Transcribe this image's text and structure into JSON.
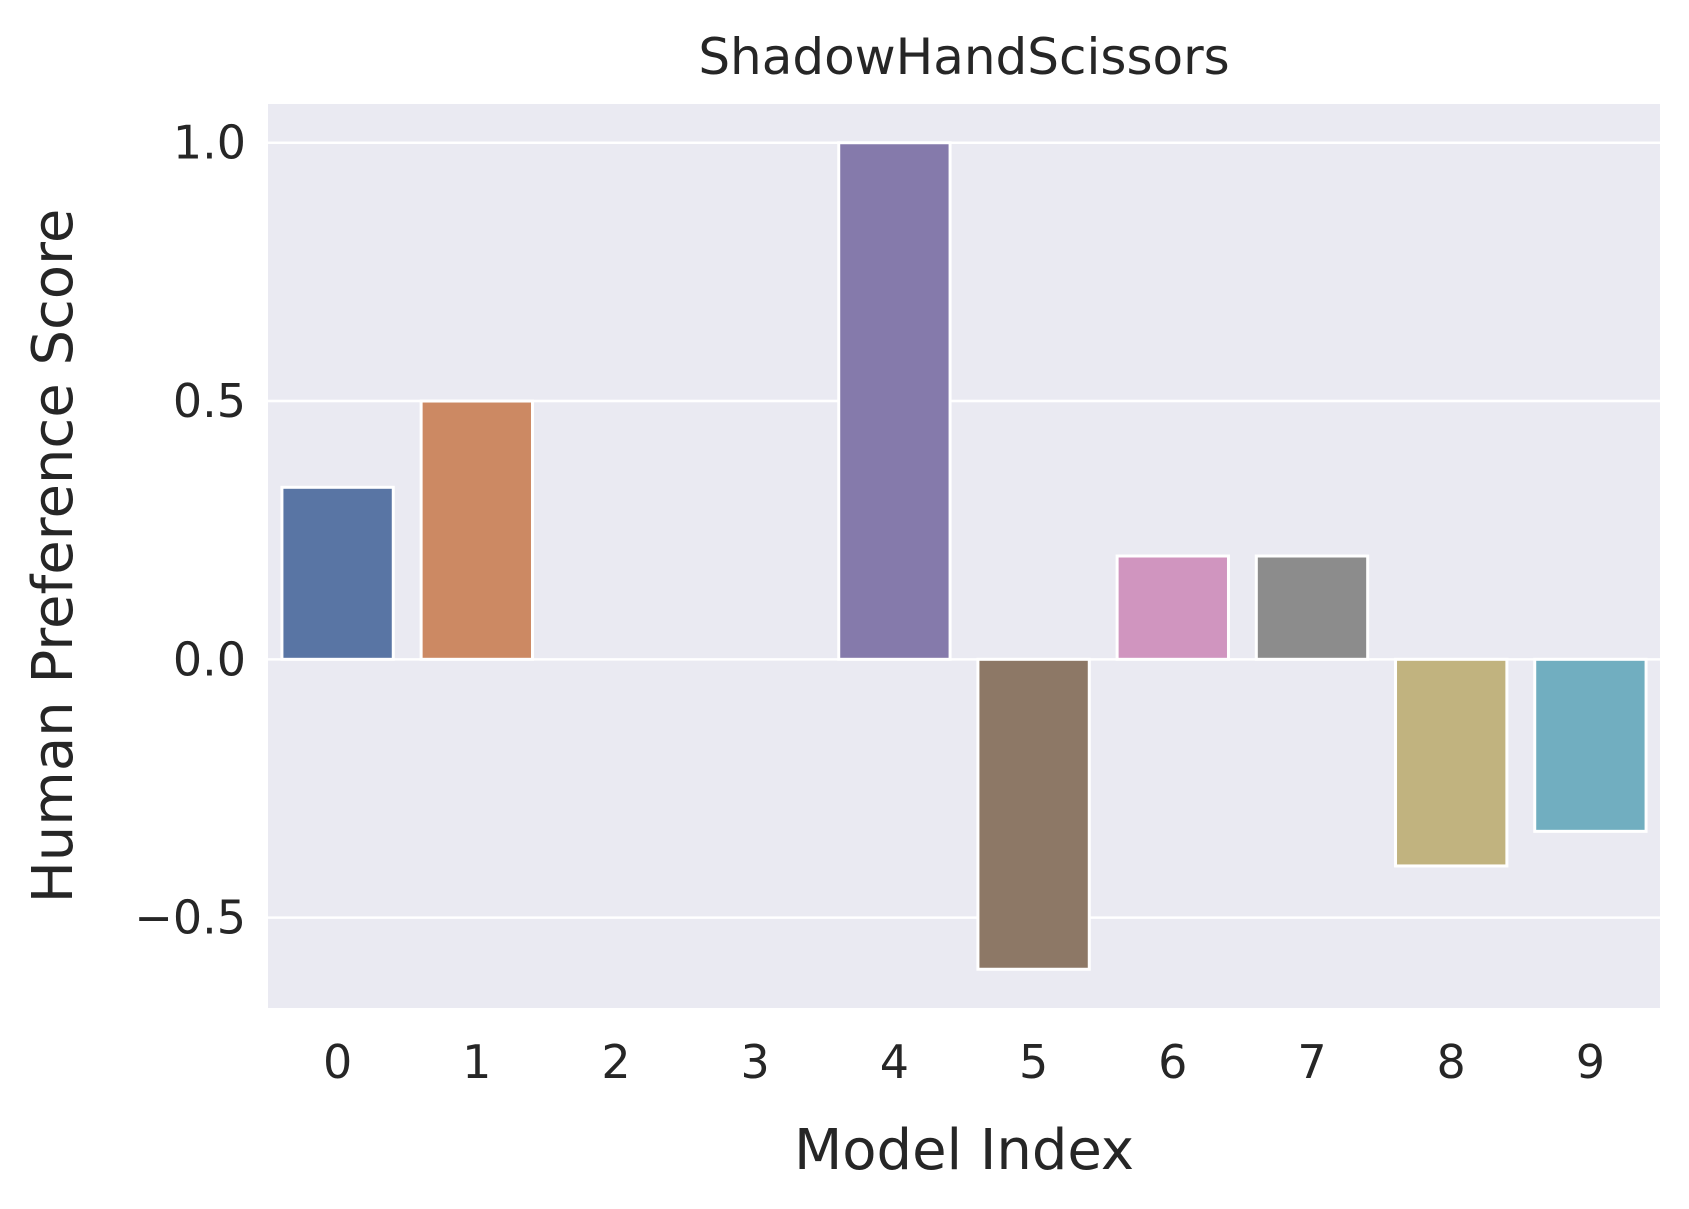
{
  "chart_data": {
    "type": "bar",
    "title": "ShadowHandScissors",
    "xlabel": "Model Index",
    "ylabel": "Human Preference Score",
    "categories": [
      "0",
      "1",
      "2",
      "3",
      "4",
      "5",
      "6",
      "7",
      "8",
      "9"
    ],
    "values": [
      0.333,
      0.5,
      0.0,
      0.0,
      1.0,
      -0.6,
      0.2,
      0.2,
      -0.4,
      -0.333
    ],
    "colors": [
      "#5975a4",
      "#cc8963",
      "#5f9e6e",
      "#b55d60",
      "#857aab",
      "#8d7866",
      "#d095bf",
      "#8c8c8c",
      "#c1b37f",
      "#71aec0"
    ],
    "ylim": [
      -0.675,
      1.075
    ],
    "yticks": [
      -0.5,
      0.0,
      0.5,
      1.0
    ],
    "ytick_labels": [
      "−0.5",
      "0.0",
      "0.5",
      "1.0"
    ],
    "grid": true,
    "background": "#eaeaf2",
    "grid_color": "#ffffff"
  }
}
